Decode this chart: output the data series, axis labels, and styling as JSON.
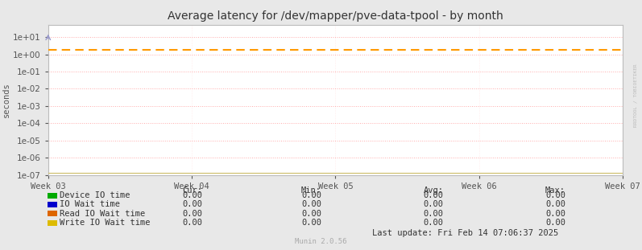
{
  "title": "Average latency for /dev/mapper/pve-data-tpool - by month",
  "ylabel": "seconds",
  "background_color": "#e8e8e8",
  "plot_background_color": "#ffffff",
  "grid_color_major": "#ffaaaa",
  "grid_color_minor": "#ffdddd",
  "x_ticks_labels": [
    "Week 03",
    "Week 04",
    "Week 05",
    "Week 06",
    "Week 07"
  ],
  "ylim_min": 1e-07,
  "ylim_max": 50.0,
  "horizontal_line_y": 1.88,
  "horizontal_line_color": "#ff9900",
  "horizontal_line_style": "--",
  "bottom_line_color": "#ccbb66",
  "series": [
    {
      "label": "Device IO time",
      "color": "#00aa00"
    },
    {
      "label": "IO Wait time",
      "color": "#0000cc"
    },
    {
      "label": "Read IO Wait time",
      "color": "#dd6600"
    },
    {
      "label": "Write IO Wait time",
      "color": "#ddbb00"
    }
  ],
  "table_headers": [
    "Cur:",
    "Min:",
    "Avg:",
    "Max:"
  ],
  "table_values": [
    [
      "0.00",
      "0.00",
      "0.00",
      "0.00"
    ],
    [
      "0.00",
      "0.00",
      "0.00",
      "0.00"
    ],
    [
      "0.00",
      "0.00",
      "0.00",
      "0.00"
    ],
    [
      "0.00",
      "0.00",
      "0.00",
      "0.00"
    ]
  ],
  "last_update": "Last update: Fri Feb 14 07:06:37 2025",
  "munin_version": "Munin 2.0.56",
  "watermark": "RRDTOOL / TOBIOETIKER",
  "title_fontsize": 10,
  "axis_label_fontsize": 7.5,
  "tick_fontsize": 7.5,
  "table_fontsize": 7.5
}
